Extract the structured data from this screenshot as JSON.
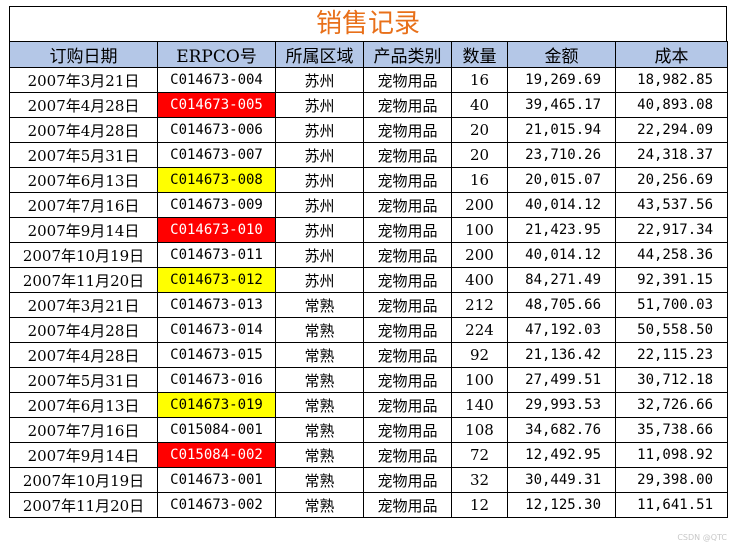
{
  "title": "销售记录",
  "colors": {
    "title_text": "#e8701a",
    "header_bg": "#b4c7e7",
    "highlight_red": "#ff0000",
    "highlight_yellow": "#ffff00",
    "red_cell_text": "#ffffff"
  },
  "headers": [
    "订购日期",
    "ERPCO号",
    "所属区域",
    "产品类别",
    "数量",
    "金额",
    "成本"
  ],
  "rows": [
    {
      "date": "2007年3月21日",
      "erp": "C014673-004",
      "region": "苏州",
      "category": "宠物用品",
      "qty": "16",
      "amount": "19,269.69",
      "cost": "18,982.85",
      "highlight": ""
    },
    {
      "date": "2007年4月28日",
      "erp": "C014673-005",
      "region": "苏州",
      "category": "宠物用品",
      "qty": "40",
      "amount": "39,465.17",
      "cost": "40,893.08",
      "highlight": "red"
    },
    {
      "date": "2007年4月28日",
      "erp": "C014673-006",
      "region": "苏州",
      "category": "宠物用品",
      "qty": "20",
      "amount": "21,015.94",
      "cost": "22,294.09",
      "highlight": ""
    },
    {
      "date": "2007年5月31日",
      "erp": "C014673-007",
      "region": "苏州",
      "category": "宠物用品",
      "qty": "20",
      "amount": "23,710.26",
      "cost": "24,318.37",
      "highlight": ""
    },
    {
      "date": "2007年6月13日",
      "erp": "C014673-008",
      "region": "苏州",
      "category": "宠物用品",
      "qty": "16",
      "amount": "20,015.07",
      "cost": "20,256.69",
      "highlight": "yellow"
    },
    {
      "date": "2007年7月16日",
      "erp": "C014673-009",
      "region": "苏州",
      "category": "宠物用品",
      "qty": "200",
      "amount": "40,014.12",
      "cost": "43,537.56",
      "highlight": ""
    },
    {
      "date": "2007年9月14日",
      "erp": "C014673-010",
      "region": "苏州",
      "category": "宠物用品",
      "qty": "100",
      "amount": "21,423.95",
      "cost": "22,917.34",
      "highlight": "red"
    },
    {
      "date": "2007年10月19日",
      "erp": "C014673-011",
      "region": "苏州",
      "category": "宠物用品",
      "qty": "200",
      "amount": "40,014.12",
      "cost": "44,258.36",
      "highlight": ""
    },
    {
      "date": "2007年11月20日",
      "erp": "C014673-012",
      "region": "苏州",
      "category": "宠物用品",
      "qty": "400",
      "amount": "84,271.49",
      "cost": "92,391.15",
      "highlight": "yellow"
    },
    {
      "date": "2007年3月21日",
      "erp": "C014673-013",
      "region": "常熟",
      "category": "宠物用品",
      "qty": "212",
      "amount": "48,705.66",
      "cost": "51,700.03",
      "highlight": ""
    },
    {
      "date": "2007年4月28日",
      "erp": "C014673-014",
      "region": "常熟",
      "category": "宠物用品",
      "qty": "224",
      "amount": "47,192.03",
      "cost": "50,558.50",
      "highlight": ""
    },
    {
      "date": "2007年4月28日",
      "erp": "C014673-015",
      "region": "常熟",
      "category": "宠物用品",
      "qty": "92",
      "amount": "21,136.42",
      "cost": "22,115.23",
      "highlight": ""
    },
    {
      "date": "2007年5月31日",
      "erp": "C014673-016",
      "region": "常熟",
      "category": "宠物用品",
      "qty": "100",
      "amount": "27,499.51",
      "cost": "30,712.18",
      "highlight": ""
    },
    {
      "date": "2007年6月13日",
      "erp": "C014673-019",
      "region": "常熟",
      "category": "宠物用品",
      "qty": "140",
      "amount": "29,993.53",
      "cost": "32,726.66",
      "highlight": "yellow"
    },
    {
      "date": "2007年7月16日",
      "erp": "C015084-001",
      "region": "常熟",
      "category": "宠物用品",
      "qty": "108",
      "amount": "34,682.76",
      "cost": "35,738.66",
      "highlight": ""
    },
    {
      "date": "2007年9月14日",
      "erp": "C015084-002",
      "region": "常熟",
      "category": "宠物用品",
      "qty": "72",
      "amount": "12,492.95",
      "cost": "11,098.92",
      "highlight": "red"
    },
    {
      "date": "2007年10月19日",
      "erp": "C014673-001",
      "region": "常熟",
      "category": "宠物用品",
      "qty": "32",
      "amount": "30,449.31",
      "cost": "29,398.00",
      "highlight": ""
    },
    {
      "date": "2007年11月20日",
      "erp": "C014673-002",
      "region": "常熟",
      "category": "宠物用品",
      "qty": "12",
      "amount": "12,125.30",
      "cost": "11,641.51",
      "highlight": ""
    }
  ],
  "watermark": "CSDN @QTC"
}
